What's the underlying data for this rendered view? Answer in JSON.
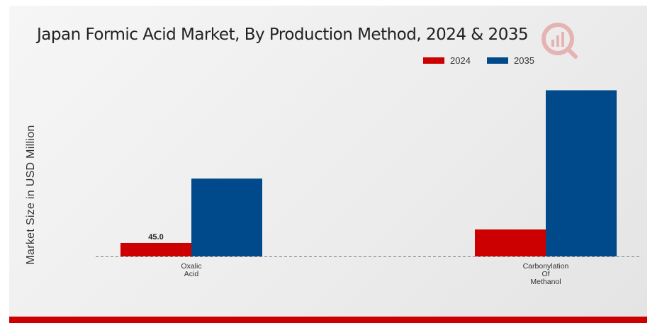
{
  "chart_data": {
    "type": "bar",
    "title": "Japan Formic Acid Market, By Production Method, 2024 & 2035",
    "ylabel": "Market Size in USD Million",
    "xlabel": "",
    "categories": [
      [
        "Oxalic",
        "Acid"
      ],
      [
        "Carbonylation",
        "Of",
        "Methanol"
      ]
    ],
    "series": [
      {
        "name": "2024",
        "color": "#cc0000",
        "values": [
          45.0,
          90.0
        ],
        "labels": [
          "45.0",
          ""
        ]
      },
      {
        "name": "2035",
        "color": "#004a8c",
        "values": [
          260.0,
          555.0
        ],
        "labels": [
          "",
          ""
        ]
      }
    ],
    "ylim": [
      0,
      620
    ],
    "grid": false,
    "legend_position": "top-right"
  },
  "colors": {
    "accent_red": "#cc0000",
    "accent_blue": "#004a8c"
  },
  "logo_icon": "market-research-logo-icon"
}
